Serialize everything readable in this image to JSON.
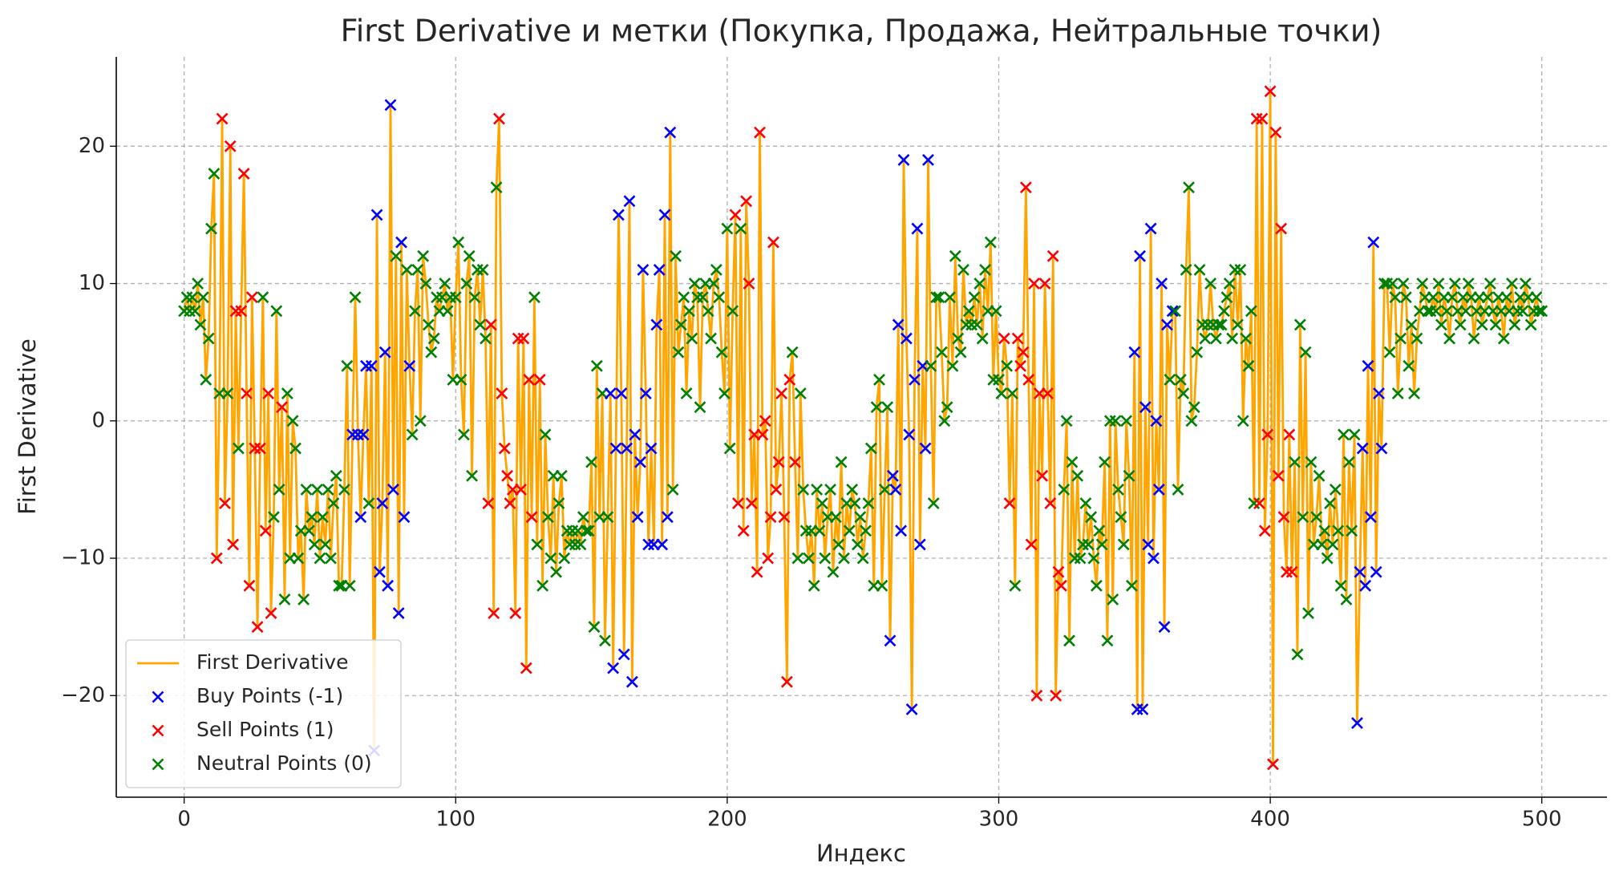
{
  "chart_data": {
    "type": "line",
    "title": "First Derivative и метки (Покупка, Продажа, Нейтральные точки)",
    "xlabel": "Индекс",
    "ylabel": "First Derivative",
    "xlim": [
      -25,
      524
    ],
    "xticks": [
      0,
      100,
      200,
      300,
      400,
      500
    ],
    "ylim": [
      -27.4,
      26.5
    ],
    "yticks": [
      {
        "value": -20,
        "label": "−20"
      },
      {
        "value": -10,
        "label": "−10"
      },
      0,
      10,
      20
    ],
    "grid": true,
    "legend": "lower left",
    "x": [
      0,
      1,
      2,
      3,
      4,
      5,
      6,
      7,
      8,
      9,
      10,
      11,
      12,
      13,
      14,
      15,
      16,
      17,
      18,
      19,
      20,
      21,
      22,
      23,
      24,
      25,
      26,
      27,
      28,
      29,
      30,
      31,
      32,
      33,
      34,
      35,
      36,
      37,
      38,
      39,
      40,
      41,
      42,
      43,
      44,
      45,
      46,
      47,
      48,
      49,
      50,
      51,
      52,
      53,
      54,
      55,
      56,
      57,
      58,
      59,
      60,
      61,
      62,
      63,
      64,
      65,
      66,
      67,
      68,
      69,
      70,
      71,
      72,
      73,
      74,
      75,
      76,
      77,
      78,
      79,
      80,
      81,
      82,
      83,
      84,
      85,
      86,
      87,
      88,
      89,
      90,
      91,
      92,
      93,
      94,
      95,
      96,
      97,
      98,
      99,
      100,
      101,
      102,
      103,
      104,
      105,
      106,
      107,
      108,
      109,
      110,
      111,
      112,
      113,
      114,
      115,
      116,
      117,
      118,
      119,
      120,
      121,
      122,
      123,
      124,
      125,
      126,
      127,
      128,
      129,
      130,
      131,
      132,
      133,
      134,
      135,
      136,
      137,
      138,
      139,
      140,
      141,
      142,
      143,
      144,
      145,
      146,
      147,
      148,
      149,
      150,
      151,
      152,
      153,
      154,
      155,
      156,
      157,
      158,
      159,
      160,
      161,
      162,
      163,
      164,
      165,
      166,
      167,
      168,
      169,
      170,
      171,
      172,
      173,
      174,
      175,
      176,
      177,
      178,
      179,
      180,
      181,
      182,
      183,
      184,
      185,
      186,
      187,
      188,
      189,
      190,
      191,
      192,
      193,
      194,
      195,
      196,
      197,
      198,
      199,
      200,
      201,
      202,
      203,
      204,
      205,
      206,
      207,
      208,
      209,
      210,
      211,
      212,
      213,
      214,
      215,
      216,
      217,
      218,
      219,
      220,
      221,
      222,
      223,
      224,
      225,
      226,
      227,
      228,
      229,
      230,
      231,
      232,
      233,
      234,
      235,
      236,
      237,
      238,
      239,
      240,
      241,
      242,
      243,
      244,
      245,
      246,
      247,
      248,
      249,
      250,
      251,
      252,
      253,
      254,
      255,
      256,
      257,
      258,
      259,
      260,
      261,
      262,
      263,
      264,
      265,
      266,
      267,
      268,
      269,
      270,
      271,
      272,
      273,
      274,
      275,
      276,
      277,
      278,
      279,
      280,
      281,
      282,
      283,
      284,
      285,
      286,
      287,
      288,
      289,
      290,
      291,
      292,
      293,
      294,
      295,
      296,
      297,
      298,
      299,
      300,
      301,
      302,
      303,
      304,
      305,
      306,
      307,
      308,
      309,
      310,
      311,
      312,
      313,
      314,
      315,
      316,
      317,
      318,
      319,
      320,
      321,
      322,
      323,
      324,
      325,
      326,
      327,
      328,
      329,
      330,
      331,
      332,
      333,
      334,
      335,
      336,
      337,
      338,
      339,
      340,
      341,
      342,
      343,
      344,
      345,
      346,
      347,
      348,
      349,
      350,
      351,
      352,
      353,
      354,
      355,
      356,
      357,
      358,
      359,
      360,
      361,
      362,
      363,
      364,
      365,
      366,
      367,
      368,
      369,
      370,
      371,
      372,
      373,
      374,
      375,
      376,
      377,
      378,
      379,
      380,
      381,
      382,
      383,
      384,
      385,
      386,
      387,
      388,
      389,
      390,
      391,
      392,
      393,
      394,
      395,
      396,
      397,
      398,
      399,
      400,
      401,
      402,
      403,
      404,
      405,
      406,
      407,
      408,
      409,
      410,
      411,
      412,
      413,
      414,
      415,
      416,
      417,
      418,
      419,
      420,
      421,
      422,
      423,
      424,
      425,
      426,
      427,
      428,
      429,
      430,
      431,
      432,
      433,
      434,
      435,
      436,
      437,
      438,
      439,
      440,
      441,
      442,
      443,
      444,
      445,
      446,
      447,
      448,
      449,
      450,
      451,
      452,
      453,
      454,
      455,
      456,
      457,
      458,
      459,
      460,
      461,
      462,
      463,
      464,
      465,
      466,
      467,
      468,
      469,
      470,
      471,
      472,
      473,
      474,
      475,
      476,
      477,
      478,
      479,
      480,
      481,
      482,
      483,
      484,
      485,
      486,
      487,
      488,
      489,
      490,
      491,
      492,
      493,
      494,
      495,
      496,
      497,
      498,
      499,
      500
    ],
    "point_classes": [
      0,
      0,
      0,
      0,
      0,
      0,
      0,
      0,
      0,
      0,
      0,
      0,
      1,
      0,
      1,
      1,
      0,
      1,
      1,
      1,
      0,
      1,
      1,
      1,
      1,
      1,
      1,
      1,
      1,
      0,
      1,
      1,
      1,
      0,
      0,
      0,
      1,
      0,
      0,
      0,
      0,
      0,
      0,
      0,
      0,
      0,
      0,
      0,
      0,
      0,
      0,
      0,
      0,
      0,
      0,
      0,
      0,
      0,
      0,
      0,
      0,
      0,
      -1,
      0,
      -1,
      -1,
      -1,
      -1,
      0,
      -1,
      -1,
      -1,
      -1,
      -1,
      -1,
      -1,
      -1,
      -1,
      0,
      -1,
      -1,
      -1,
      0,
      -1,
      0,
      0,
      0,
      0,
      0,
      0,
      0,
      0,
      0,
      0,
      0,
      0,
      0,
      0,
      0,
      0,
      0,
      0,
      0,
      0,
      0,
      0,
      0,
      0,
      0,
      0,
      0,
      0,
      1,
      1,
      1,
      0,
      1,
      1,
      1,
      1,
      1,
      1,
      1,
      1,
      1,
      1,
      1,
      1,
      1,
      0,
      0,
      1,
      0,
      0,
      0,
      0,
      0,
      0,
      0,
      0,
      0,
      0,
      0,
      0,
      0,
      0,
      0,
      0,
      0,
      0,
      0,
      0,
      0,
      0,
      0,
      0,
      0,
      -1,
      -1,
      -1,
      -1,
      -1,
      -1,
      -1,
      -1,
      -1,
      -1,
      -1,
      -1,
      -1,
      -1,
      -1,
      -1,
      -1,
      -1,
      -1,
      -1,
      -1,
      -1,
      -1,
      0,
      0,
      0,
      0,
      0,
      0,
      0,
      0,
      0,
      0,
      0,
      0,
      0,
      0,
      0,
      0,
      0,
      0,
      0,
      0,
      0,
      0,
      0,
      1,
      1,
      0,
      1,
      1,
      1,
      1,
      1,
      1,
      1,
      1,
      1,
      1,
      1,
      1,
      1,
      1,
      1,
      1,
      1,
      1,
      0,
      1,
      0,
      0,
      0,
      0,
      0,
      0,
      0,
      0,
      0,
      0,
      0,
      0,
      0,
      0,
      0,
      0,
      0,
      0,
      0,
      0,
      0,
      0,
      0,
      0,
      0,
      0,
      0,
      0,
      0,
      0,
      0,
      0,
      0,
      0,
      -1,
      -1,
      -1,
      -1,
      -1,
      -1,
      -1,
      -1,
      -1,
      -1,
      -1,
      -1,
      -1,
      -1,
      -1,
      0,
      0,
      0,
      0,
      0,
      0,
      0,
      0,
      0,
      0,
      0,
      0,
      0,
      0,
      0,
      0,
      0,
      0,
      0,
      0,
      0,
      0,
      0,
      0,
      0,
      0,
      0,
      1,
      0,
      1,
      0,
      0,
      1,
      1,
      1,
      1,
      1,
      1,
      1,
      1,
      1,
      1,
      1,
      1,
      1,
      1,
      1,
      1,
      1,
      0,
      0,
      0,
      0,
      0,
      0,
      0,
      0,
      0,
      0,
      0,
      0,
      0,
      0,
      0,
      0,
      0,
      0,
      0,
      0,
      0,
      0,
      0,
      0,
      0,
      0,
      -1,
      -1,
      -1,
      -1,
      -1,
      -1,
      -1,
      -1,
      -1,
      -1,
      -1,
      -1,
      -1,
      0,
      -1,
      0,
      0,
      0,
      0,
      0,
      0,
      0,
      0,
      0,
      0,
      0,
      0,
      0,
      0,
      0,
      0,
      0,
      0,
      0,
      0,
      0,
      0,
      0,
      0,
      0,
      0,
      0,
      0,
      0,
      0,
      1,
      1,
      1,
      1,
      1,
      1,
      1,
      1,
      1,
      1,
      1,
      1,
      1,
      1,
      0,
      0,
      0,
      0,
      0,
      0,
      0,
      0,
      0,
      0,
      0,
      0,
      0,
      0,
      0,
      0,
      0,
      0,
      0,
      0,
      0,
      0,
      0,
      -1,
      -1,
      -1,
      -1,
      -1,
      -1,
      -1,
      -1,
      -1,
      -1,
      0,
      0,
      0,
      0,
      0,
      0,
      0,
      0,
      0,
      0,
      0,
      0,
      0,
      0,
      0,
      0,
      0,
      0,
      0,
      0,
      0,
      0,
      0,
      0,
      0,
      0,
      0,
      0,
      0,
      0,
      0,
      0,
      0,
      0,
      0,
      0,
      0,
      0,
      0,
      0,
      0,
      0,
      0,
      0,
      0,
      0,
      0,
      0,
      0,
      0,
      0,
      0,
      0,
      0,
      0,
      0,
      0,
      0,
      0
    ],
    "series": [
      {
        "name": "First Derivative",
        "type": "line",
        "color": "#ffa500",
        "values": [
          8,
          9,
          8,
          9,
          8,
          10,
          7,
          9,
          3,
          6,
          14,
          18,
          -10,
          2,
          22,
          -6,
          2,
          20,
          -9,
          8,
          -2,
          8,
          18,
          2,
          -12,
          9,
          -2,
          -15,
          -2,
          9,
          -8,
          2,
          -14,
          -7,
          8,
          -5,
          1,
          -13,
          2,
          -10,
          0,
          -2,
          -10,
          -8,
          -13,
          -5,
          -8,
          -7,
          -9,
          -5,
          -10,
          -7,
          -9,
          -5,
          -10,
          -6,
          -4,
          -12,
          -12,
          -5,
          4,
          -12,
          -1,
          9,
          -1,
          -7,
          -1,
          4,
          -6,
          4,
          -24,
          15,
          -11,
          -6,
          5,
          -12,
          23,
          -5,
          12,
          -14,
          13,
          -7,
          11,
          4,
          -1,
          8,
          11,
          0,
          12,
          10,
          7,
          5,
          6,
          9,
          8,
          9,
          10,
          8,
          9,
          3,
          9,
          13,
          3,
          -1,
          10,
          12,
          -4,
          9,
          11,
          7,
          11,
          6,
          -6,
          7,
          -14,
          17,
          22,
          2,
          -2,
          -4,
          -6,
          -5,
          -14,
          6,
          -5,
          6,
          -18,
          3,
          -7,
          9,
          -9,
          3,
          -12,
          -1,
          -7,
          -10,
          -4,
          -11,
          -6,
          -4,
          -10,
          -8,
          -9,
          -8,
          -9,
          -8,
          -9,
          -7,
          -8,
          -8,
          -3,
          -15,
          4,
          -7,
          2,
          -16,
          -7,
          2,
          -18,
          -2,
          15,
          2,
          -17,
          -2,
          16,
          -19,
          -1,
          -7,
          -3,
          11,
          2,
          -9,
          -2,
          -9,
          7,
          11,
          -9,
          15,
          -7,
          21,
          -5,
          12,
          5,
          7,
          9,
          2,
          8,
          6,
          10,
          9,
          1,
          9,
          10,
          8,
          6,
          10,
          11,
          9,
          5,
          2,
          14,
          -2,
          8,
          15,
          -6,
          14,
          -8,
          16,
          10,
          -6,
          -1,
          -11,
          21,
          -1,
          0,
          -10,
          -7,
          13,
          -5,
          -3,
          2,
          -7,
          -19,
          3,
          5,
          -3,
          -10,
          2,
          -5,
          -8,
          -10,
          -8,
          -12,
          -5,
          -8,
          -6,
          -10,
          -7,
          -5,
          -11,
          -7,
          -9,
          -3,
          -10,
          -6,
          -8,
          -5,
          -6,
          -9,
          -7,
          -10,
          -8,
          -6,
          -2,
          -12,
          1,
          3,
          -12,
          -5,
          1,
          -16,
          -4,
          -5,
          7,
          -8,
          19,
          6,
          -1,
          -21,
          3,
          14,
          -9,
          4,
          -2,
          19,
          4,
          -6,
          9,
          9,
          5,
          0,
          1,
          9,
          4,
          12,
          6,
          5,
          11,
          7,
          8,
          7,
          9,
          7,
          10,
          6,
          11,
          8,
          13,
          3,
          8,
          3,
          2,
          6,
          4,
          -6,
          2,
          -12,
          6,
          4,
          5,
          17,
          3,
          -9,
          10,
          -20,
          2,
          -4,
          10,
          2,
          -6,
          12,
          -20,
          -11,
          -12,
          -5,
          0,
          -16,
          -3,
          -10,
          -4,
          -10,
          -9,
          -6,
          -9,
          -7,
          -10,
          -12,
          -8,
          -9,
          -3,
          -16,
          0,
          -13,
          0,
          -5,
          -7,
          -9,
          0,
          -4,
          -12,
          5,
          -21,
          12,
          -21,
          1,
          -9,
          14,
          -10,
          0,
          -5,
          10,
          -15,
          7,
          3,
          8,
          8,
          -5,
          3,
          2,
          11,
          17,
          0,
          1,
          5,
          11,
          7,
          6,
          7,
          10,
          7,
          6,
          7,
          7,
          8,
          9,
          10,
          6,
          11,
          7,
          11,
          0,
          6,
          4,
          8,
          -6,
          22,
          -6,
          22,
          -8,
          -1,
          24,
          -25,
          21,
          -4,
          14,
          -7,
          -11,
          -1,
          -11,
          -3,
          -17,
          7,
          -7,
          5,
          -14,
          -3,
          -9,
          -7,
          -4,
          -9,
          -8,
          -10,
          -6,
          -9,
          -5,
          -8,
          -12,
          -1,
          -13,
          -3,
          -8,
          -1,
          -22,
          -11,
          -2,
          -12,
          4,
          -7,
          13,
          -11,
          2,
          -2,
          10,
          10,
          5,
          10,
          9,
          2,
          6,
          10,
          9,
          4,
          7,
          2,
          6,
          8,
          10,
          9,
          8,
          8,
          9,
          8,
          10,
          7,
          9,
          8,
          6,
          9,
          10,
          8,
          7,
          9,
          8,
          10,
          9,
          6,
          8,
          9,
          7,
          8,
          9,
          10,
          8,
          7,
          9,
          8,
          6,
          9,
          8,
          10,
          7,
          8,
          9,
          8,
          10,
          9,
          7,
          8,
          9,
          8,
          8
        ]
      },
      {
        "name": "Buy Points (-1)",
        "type": "scatter",
        "color": "#0000ff",
        "class": -1
      },
      {
        "name": "Sell Points (1)",
        "type": "scatter",
        "color": "#ff0000",
        "class": 1
      },
      {
        "name": "Neutral Points (0)",
        "type": "scatter",
        "color": "#008000",
        "class": 0
      }
    ]
  }
}
